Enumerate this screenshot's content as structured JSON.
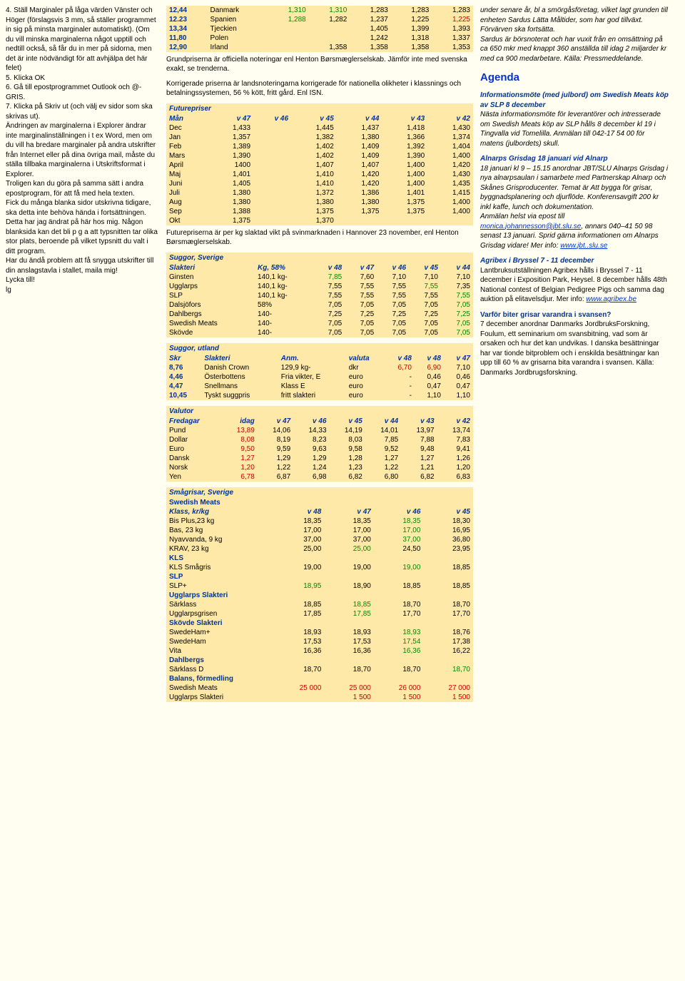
{
  "left": {
    "p1": "4. Ställ Marginaler på låga värden Vänster och Höger (förslagsvis 3 mm, så ställer programmet in sig på minsta marginaler automatiskt). (Om du vill minska marginalerna något upptill och nedtill också, så får du in mer på sidorna, men det är inte nödvändigt för att avhjälpa det här felet)",
    "p2": "5. Klicka OK",
    "p3": "6. Gå till epostprogrammet Outlook och @-GRIS.",
    "p4": "7. Klicka på Skriv ut (och välj ev sidor som ska skrivas ut).",
    "p5": "Ändringen av marginalerna i Explorer ändrar inte marginalinställningen i t ex Word, men om du vill ha bredare marginaler på andra utskrifter från Internet eller på dina övriga mail, måste du ställa tillbaka marginalerna i Utskriftsformat i Explorer.",
    "p6": "Troligen kan du göra på samma sätt i andra epostprogram, för att få med hela texten.",
    "p7": "Fick du många blanka sidor utskrivna tidigare, ska detta inte behöva hända i fortsättningen. Detta har jag ändrat på här hos mig. Någon blanksida kan det bli p g a att typsnitten tar olika stor plats, beroende på vilket typsnitt du valt i ditt program.",
    "p8": "Har du ändå problem att få snygga utskrifter till din anslagstavla i stallet, maila mig!",
    "p9": "Lycka till!",
    "p10": "lg"
  },
  "grund": {
    "rows": [
      {
        "c0": "12,44",
        "c1": "Danmark",
        "c2": "1,310",
        "c2c": "grn",
        "c3": "1,310",
        "c3c": "grn",
        "c4": "1,283",
        "c5": "1,283",
        "c6": "1,283"
      },
      {
        "c0": "12.23",
        "c1": "Spanien",
        "c2": "1,288",
        "c2c": "grn",
        "c3": "1,282",
        "c4": "1,237",
        "c5": "1,225",
        "c6": "1,225",
        "c6c": "red"
      },
      {
        "c0": "13,34",
        "c1": "Tjeckien",
        "c2": "",
        "c3": "",
        "c4": "1,405",
        "c5": "1,399",
        "c6": "1,393"
      },
      {
        "c0": "11,80",
        "c1": "Polen",
        "c2": "",
        "c3": "",
        "c4": "1,242",
        "c5": "1,318",
        "c6": "1,337"
      },
      {
        "c0": "12,90",
        "c1": "Irland",
        "c2": "",
        "c3": "1,358",
        "c4": "1,358",
        "c5": "1,358",
        "c6": "1,353"
      }
    ],
    "note1": "Grundpriserna är officiella noteringar enl Henton Børsmæglerselskab. Jämför inte med svenska exakt, se trenderna.",
    "note2": "Korrigerade priserna är landsnoteringarna korrigerade för nationella olikheter i klassnings och betalningssystemen, 56 % kött, fritt gård. Enl ISN."
  },
  "future": {
    "title": "Futurepriser",
    "h": [
      "Mån",
      "v 47",
      "v 46",
      "v 45",
      "v 44",
      "v 43",
      "v 42"
    ],
    "rows": [
      {
        "m": "Dec",
        "v": [
          "1,433",
          "",
          "1,445",
          "1,437",
          "1,418",
          "1,430"
        ]
      },
      {
        "m": "Jan",
        "v": [
          "1,357",
          "",
          "1,382",
          "1,380",
          "1,366",
          "1,374"
        ]
      },
      {
        "m": "Feb",
        "v": [
          "1,389",
          "",
          "1,402",
          "1,409",
          "1,392",
          "1,404"
        ]
      },
      {
        "m": "Mars",
        "v": [
          "1,390",
          "",
          "1,402",
          "1,409",
          "1,390",
          "1,400"
        ]
      },
      {
        "m": "April",
        "v": [
          "1400",
          "",
          "1,407",
          "1,407",
          "1,400",
          "1,420"
        ]
      },
      {
        "m": "Maj",
        "v": [
          "1,401",
          "",
          "1,410",
          "1,420",
          "1,400",
          "1,430"
        ]
      },
      {
        "m": "Juni",
        "v": [
          "1,405",
          "",
          "1,410",
          "1,420",
          "1,400",
          "1,435"
        ]
      },
      {
        "m": "Juli",
        "v": [
          "1,380",
          "",
          "1,372",
          "1,386",
          "1,401",
          "1,415"
        ]
      },
      {
        "m": "Aug",
        "v": [
          "1,380",
          "",
          "1,380",
          "1,380",
          "1,375",
          "1,400"
        ]
      },
      {
        "m": "Sep",
        "v": [
          "1,388",
          "",
          "1,375",
          "1,375",
          "1,375",
          "1,400"
        ]
      },
      {
        "m": "Okt",
        "v": [
          "1,375",
          "",
          "1,370",
          "",
          "",
          ""
        ]
      }
    ],
    "note": "Futurepriserna är per kg slaktad vikt på svinmarknaden i Hannover 23 november, enl Henton Børsmæglerselskab."
  },
  "suggor_sv": {
    "title": "Suggor, Sverige",
    "h": [
      "Slakteri",
      "Kg, 58%",
      "v 48",
      "v 47",
      "v 46",
      "v 45",
      "v 44"
    ],
    "rows": [
      {
        "n": "Ginsten",
        "kg": "140,1 kg-",
        "v": [
          "7,85",
          "7,60",
          "7,10",
          "7,10",
          "7,10"
        ],
        "c0": "grn"
      },
      {
        "n": "Ugglarps",
        "kg": "140,1 kg-",
        "v": [
          "7,55",
          "7,55",
          "7,55",
          "7,55",
          "7,35"
        ],
        "c3": "grn"
      },
      {
        "n": "SLP",
        "kg": "140,1 kg-",
        "v": [
          "7,55",
          "7,55",
          "7,55",
          "7,55",
          "7,55"
        ],
        "c4": "grn"
      },
      {
        "n": "Dalsjöfors",
        "kg": "58%",
        "v": [
          "7,05",
          "7,05",
          "7,05",
          "7,05",
          "7,05"
        ],
        "c4": "grn"
      },
      {
        "n": "Dahlbergs",
        "kg": "140-",
        "v": [
          "7,25",
          "7,25",
          "7,25",
          "7,25",
          "7,25"
        ],
        "c4": "grn"
      },
      {
        "n": "Swedish Meats",
        "kg": "140-",
        "v": [
          "7,05",
          "7,05",
          "7,05",
          "7,05",
          "7,05"
        ],
        "c4": "grn"
      },
      {
        "n": "Skövde",
        "kg": "140-",
        "v": [
          "7,05",
          "7,05",
          "7,05",
          "7,05",
          "7,05"
        ],
        "c4": "grn"
      }
    ]
  },
  "suggor_ut": {
    "title": "Suggor, utland",
    "h": [
      "Skr",
      "Slakteri",
      "Anm.",
      "valuta",
      "v 48",
      "v 48",
      "v 47"
    ],
    "rows": [
      {
        "s": "8,76",
        "n": "Danish Crown",
        "a": "129,9 kg-",
        "cur": "dkr",
        "v": [
          "6,70",
          "6,90",
          "7,10"
        ],
        "c0": "red",
        "c1": "red"
      },
      {
        "s": "4,46",
        "n": "Österbottens",
        "a": "Fria vikter, E",
        "cur": "euro",
        "v": [
          "-",
          "0,46",
          "0,46"
        ]
      },
      {
        "s": "4,47",
        "n": "Snellmans",
        "a": "Klass E",
        "cur": "euro",
        "v": [
          "-",
          "0,47",
          "0,47"
        ]
      },
      {
        "s": "10,45",
        "n": "Tyskt suggpris",
        "a": "fritt slakteri",
        "cur": "euro",
        "v": [
          "-",
          "1,10",
          "1,10"
        ]
      }
    ]
  },
  "valutor": {
    "title": "Valutor",
    "h": [
      "Fredagar",
      "idag",
      "v 47",
      "v 46",
      "v 45",
      "v 44",
      "v 43",
      "v 42"
    ],
    "rows": [
      {
        "n": "Pund",
        "v": [
          "13,89",
          "14,06",
          "14,33",
          "14,19",
          "14,01",
          "13,97",
          "13,74"
        ],
        "c0": "red"
      },
      {
        "n": "Dollar",
        "v": [
          "8,08",
          "8,19",
          "8,23",
          "8,03",
          "7,85",
          "7,88",
          "7,83"
        ],
        "c0": "red"
      },
      {
        "n": "Euro",
        "v": [
          "9,50",
          "9,59",
          "9,63",
          "9,58",
          "9,52",
          "9,48",
          "9,41"
        ],
        "c0": "red"
      },
      {
        "n": "Dansk",
        "v": [
          "1,27",
          "1,29",
          "1,29",
          "1,28",
          "1,27",
          "1,27",
          "1,26"
        ],
        "c0": "red"
      },
      {
        "n": "Norsk",
        "v": [
          "1,20",
          "1,22",
          "1,24",
          "1,23",
          "1,22",
          "1,21",
          "1,20"
        ],
        "c0": "red"
      },
      {
        "n": "Yen",
        "v": [
          "6,78",
          "6,87",
          "6,98",
          "6,82",
          "6,80",
          "6,82",
          "6,83"
        ],
        "c0": "red"
      }
    ]
  },
  "smagris": {
    "title": "Smågrisar, Sverige",
    "h": [
      "Klass, kr/kg",
      "v 48",
      "v 47",
      "v 46",
      "v 45"
    ],
    "groups": [
      {
        "g": "Swedish Meats",
        "rows": [
          {
            "n": "Bis Plus,23 kg",
            "v": [
              "18,35",
              "18,35",
              "18,35",
              "18,30"
            ],
            "c2": "grn"
          },
          {
            "n": "Bas, 23 kg",
            "v": [
              "17,00",
              "17,00",
              "17,00",
              "16,95"
            ],
            "c2": "grn"
          },
          {
            "n": "Nyavvanda, 9 kg",
            "v": [
              "37,00",
              "37,00",
              "37,00",
              "36,80"
            ],
            "c2": "grn"
          },
          {
            "n": "KRAV, 23 kg",
            "v": [
              "25,00",
              "25,00",
              "24,50",
              "23,95"
            ],
            "c1": "grn"
          }
        ]
      },
      {
        "g": "KLS",
        "rows": [
          {
            "n": "KLS Smågris",
            "v": [
              "19,00",
              "19,00",
              "19,00",
              "18,85"
            ],
            "c2": "grn"
          }
        ]
      },
      {
        "g": "SLP",
        "rows": [
          {
            "n": "SLP+",
            "v": [
              "18,95",
              "18,90",
              "18,85",
              "18,85"
            ],
            "c0": "grn"
          }
        ]
      },
      {
        "g": "Ugglarps Slakteri",
        "rows": [
          {
            "n": "Särklass",
            "v": [
              "18,85",
              "18,85",
              "18,70",
              "18,70"
            ],
            "c1": "grn"
          },
          {
            "n": "Ugglarpsgrisen",
            "v": [
              "17,85",
              "17,85",
              "17,70",
              "17,70"
            ],
            "c1": "grn"
          }
        ]
      },
      {
        "g": "Skövde Slakteri",
        "rows": [
          {
            "n": "SwedeHam+",
            "v": [
              "18,93",
              "18,93",
              "18,93",
              "18,76"
            ],
            "c2": "grn"
          },
          {
            "n": "SwedeHam",
            "v": [
              "17,53",
              "17,53",
              "17,54",
              "17,38"
            ],
            "c2": "grn"
          },
          {
            "n": "Vita",
            "v": [
              "16,36",
              "16,36",
              "16,36",
              "16,22"
            ],
            "c2": "grn"
          }
        ]
      },
      {
        "g": "Dahlbergs",
        "rows": [
          {
            "n": "Särklass D",
            "v": [
              "18,70",
              "18,70",
              "18,70",
              "18,70"
            ],
            "c3": "grn"
          }
        ]
      },
      {
        "g": "Balans, förmedling",
        "rows": [
          {
            "n": "Swedish Meats",
            "v": [
              "25 000",
              "25 000",
              "26 000",
              "27 000"
            ],
            "c0": "red",
            "c1": "red",
            "c2": "red",
            "c3": "red"
          },
          {
            "n": "Ugglarps Slakteri",
            "v": [
              "",
              "1 500",
              "1 500",
              "1 500"
            ],
            "c1": "red",
            "c2": "red",
            "c3": "red"
          }
        ]
      }
    ]
  },
  "right": {
    "p1": "under senare år, bl a smörgåsföretag, vilket lagt grunden till enheten Sardus Lätta Måltider, som har god tillväxt. Förvärven ska fortsätta.",
    "p2": "Sardus är börsnoterat och har vuxit från en omsättning på ca 650 mkr med knappt 360 anställda till idag 2 miljarder kr med ca 900 medarbetare. Källa: Pressmeddelande.",
    "agenda_title": "Agenda",
    "a1h": "Informationsmöte (med julbord) om Swedish Meats köp av SLP 8 december",
    "a1": "Nästa informationsmöte för leverantörer och intresserade om Swedish Meats köp av SLP hålls 8 december kl 19 i Tingvalla vid Tomelilla. Anmälan till 042-17 54 00 för matens (julbordets) skull.",
    "a2h": "Alnarps Grisdag 18 januari vid Alnarp",
    "a2a": "18 januari kl 9 – 15.15 anordnar JBT/SLU Alnarps Grisdag i nya alnarpsaulan i samarbete med Partnerskap Alnarp och Skånes Grisproducenter. Temat är Att bygga för grisar, byggnadsplanering och djurflöde. Konferensavgift 200 kr inkl kaffe, lunch och dokumentation.",
    "a2b": "Anmälan helst via epost till ",
    "a2link1": "monica.johannesson@jbt.slu.se",
    "a2c": ", annars 040–41 50 98 senast 13 januari. Sprid gärna informationen om Alnarps Grisdag vidare! Mer info: ",
    "a2link2": "www.jbt..slu.se",
    "a3h": "Agribex i Bryssel 7 - 11 december",
    "a3a": "Lantbruksutställningen Agribex hålls i Bryssel 7 - 11 december i Exposition Park, Heysel. 8 december hålls 48th National contest of Belgian Pedigree Pigs och samma dag auktion på elitavelsdjur. Mer info: ",
    "a3link": "www.agribex.be",
    "a4h": "Varför biter grisar varandra i svansen?",
    "a4": "7 december anordnar Danmarks JordbruksForskning, Foulum, ett seminarium om svansbitning, vad som är orsaken och hur det kan undvikas. I danska besättningar har var tionde bitproblem och i enskilda besättningar kan upp till 60 % av grisarna bita varandra i svansen. Källa: Danmarks Jordbrugsforskning."
  }
}
